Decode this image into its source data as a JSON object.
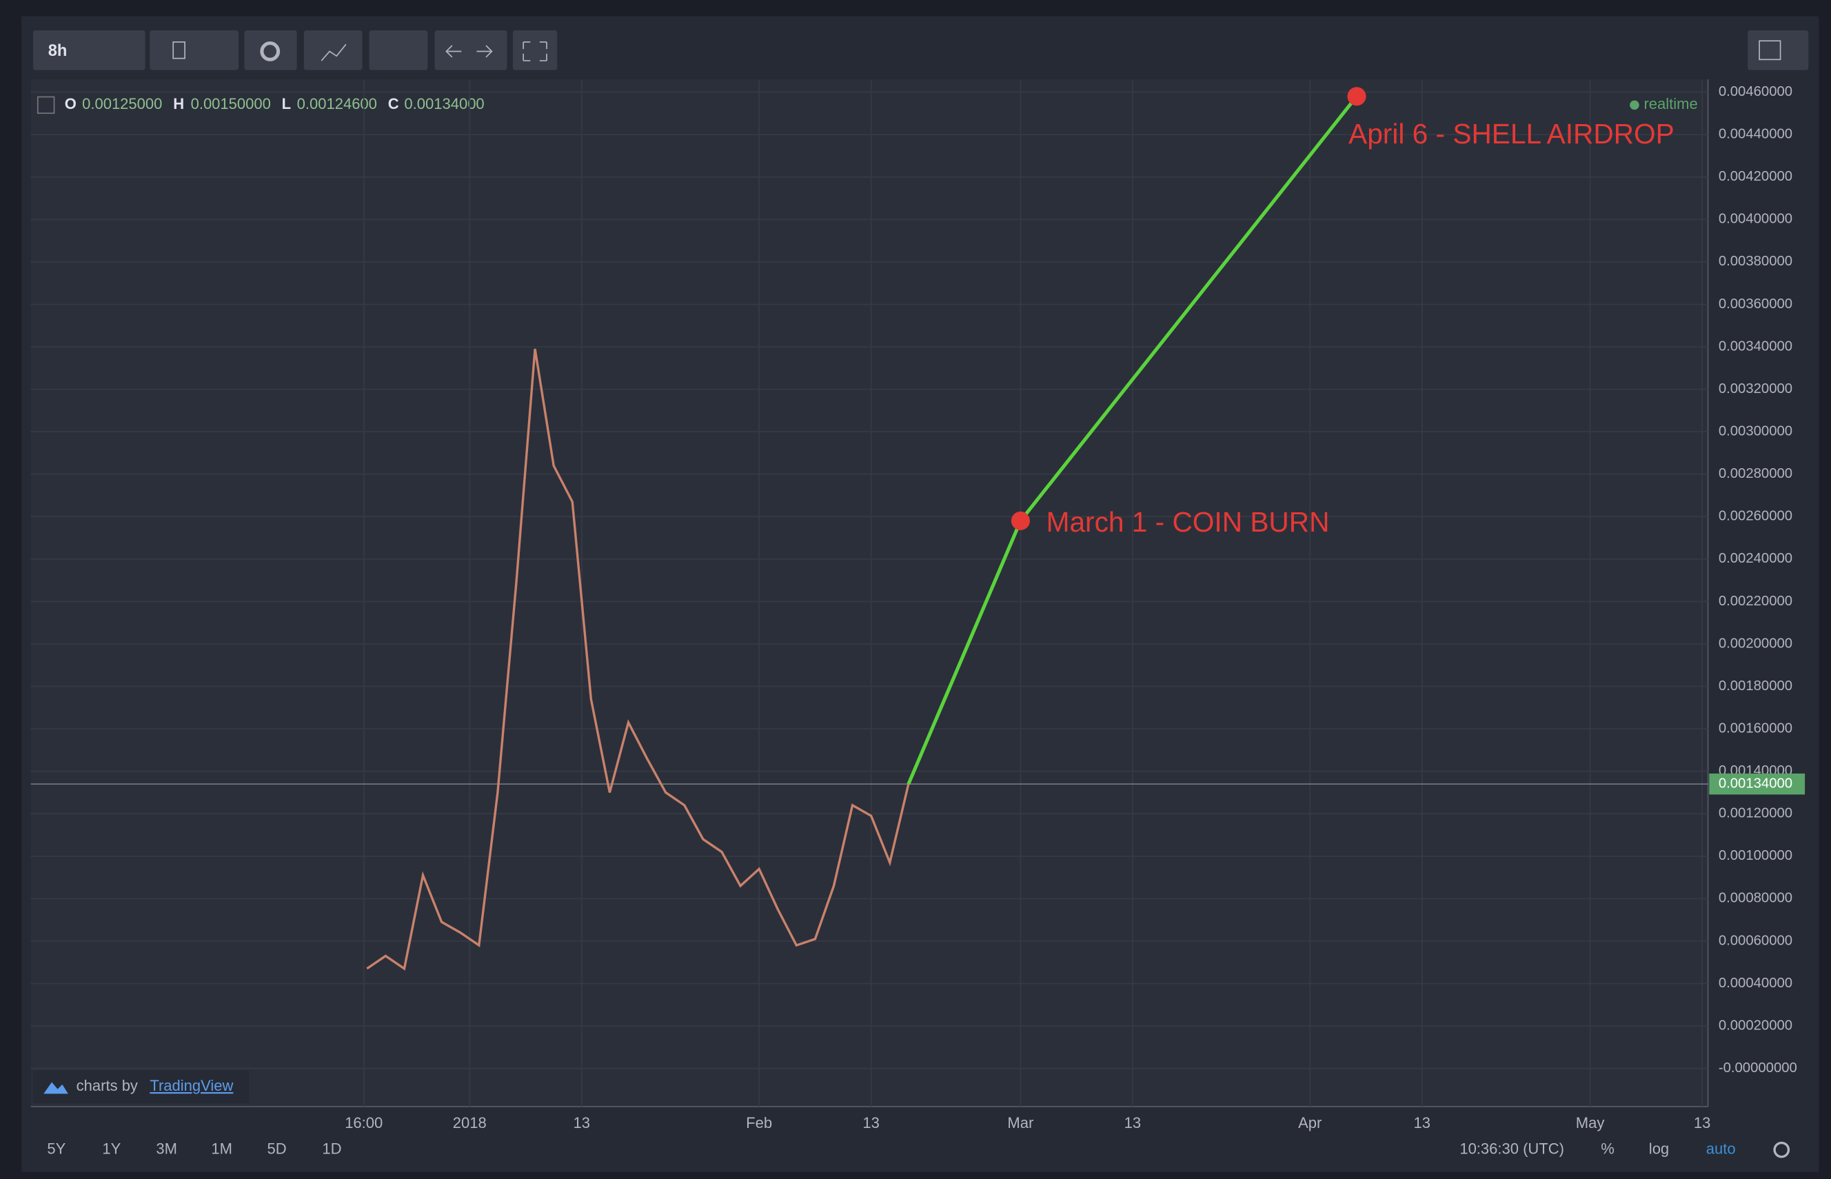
{
  "toolbar": {
    "interval": "8h"
  },
  "ohlc": [
    {
      "key": "O",
      "value": "0.00125000"
    },
    {
      "key": "H",
      "value": "0.00150000"
    },
    {
      "key": "L",
      "value": "0.00124600"
    },
    {
      "key": "C",
      "value": "0.00134000"
    }
  ],
  "status": "realtime",
  "branding": {
    "prefix": "charts by",
    "name": "TradingView"
  },
  "ranges": [
    "5Y",
    "1Y",
    "3M",
    "1M",
    "5D",
    "1D"
  ],
  "footer": {
    "time": "10:36:30 (UTC)",
    "percent": "%",
    "log": "log",
    "auto": "auto"
  },
  "chart_data": {
    "type": "line",
    "x": [
      "2017-12-21",
      "2017-12-23",
      "2017-12-25",
      "2017-12-27",
      "2017-12-29",
      "2017-12-31",
      "2018-01-02",
      "2018-01-04",
      "2018-01-06",
      "2018-01-08",
      "2018-01-10",
      "2018-01-12",
      "2018-01-14",
      "2018-01-16",
      "2018-01-18",
      "2018-01-20",
      "2018-01-22",
      "2018-01-24",
      "2018-01-26",
      "2018-01-28",
      "2018-01-30",
      "2018-02-01",
      "2018-02-03",
      "2018-02-05",
      "2018-02-07",
      "2018-02-09",
      "2018-02-11",
      "2018-02-13",
      "2018-02-15",
      "2018-02-17"
    ],
    "values": [
      0.00047,
      0.00053,
      0.00047,
      0.00091,
      0.00069,
      0.00064,
      0.00058,
      0.0013,
      0.00229,
      0.00339,
      0.00284,
      0.00267,
      0.00174,
      0.0013,
      0.00163,
      0.00146,
      0.0013,
      0.00124,
      0.00108,
      0.00102,
      0.00086,
      0.00094,
      0.00075,
      0.00058,
      0.00061,
      0.00086,
      0.00124,
      0.00119,
      0.00097,
      0.00134
    ],
    "color": "#c9826b",
    "projection": {
      "x": [
        "2018-02-17",
        "2018-03-01",
        "2018-04-06"
      ],
      "values": [
        0.00134,
        0.00258,
        0.00458
      ],
      "color": "#5ad33c",
      "point_color": "#e53935",
      "labels": [
        null,
        "March 1 - COIN BURN",
        "April 6 - SHELL AIRDROP"
      ]
    },
    "last_price": {
      "value": 0.00134,
      "label": "0.00134000"
    },
    "xlim": [
      "2017-11-15",
      "2018-05-14"
    ],
    "xticks": [
      {
        "value": "2017-12-20T16:00",
        "label": "16:00"
      },
      {
        "value": "2018-01-01",
        "label": "2018"
      },
      {
        "value": "2018-01-13",
        "label": "13"
      },
      {
        "value": "2018-02-01",
        "label": "Feb"
      },
      {
        "value": "2018-02-13",
        "label": "13"
      },
      {
        "value": "2018-03-01",
        "label": "Mar"
      },
      {
        "value": "2018-03-13",
        "label": "13"
      },
      {
        "value": "2018-04-01",
        "label": "Apr"
      },
      {
        "value": "2018-04-13",
        "label": "13"
      },
      {
        "value": "2018-05-01",
        "label": "May"
      },
      {
        "value": "2018-05-13",
        "label": "13"
      }
    ],
    "ylim": [
      -0.00018,
      0.00466
    ],
    "yticks": [
      {
        "value": 0.0046,
        "label": "0.00460000"
      },
      {
        "value": 0.0044,
        "label": "0.00440000"
      },
      {
        "value": 0.0042,
        "label": "0.00420000"
      },
      {
        "value": 0.004,
        "label": "0.00400000"
      },
      {
        "value": 0.0038,
        "label": "0.00380000"
      },
      {
        "value": 0.0036,
        "label": "0.00360000"
      },
      {
        "value": 0.0034,
        "label": "0.00340000"
      },
      {
        "value": 0.0032,
        "label": "0.00320000"
      },
      {
        "value": 0.003,
        "label": "0.00300000"
      },
      {
        "value": 0.0028,
        "label": "0.00280000"
      },
      {
        "value": 0.0026,
        "label": "0.00260000"
      },
      {
        "value": 0.0024,
        "label": "0.00240000"
      },
      {
        "value": 0.0022,
        "label": "0.00220000"
      },
      {
        "value": 0.002,
        "label": "0.00200000"
      },
      {
        "value": 0.0018,
        "label": "0.00180000"
      },
      {
        "value": 0.0016,
        "label": "0.00160000"
      },
      {
        "value": 0.0014,
        "label": "0.00140000"
      },
      {
        "value": 0.0012,
        "label": "0.00120000"
      },
      {
        "value": 0.001,
        "label": "0.00100000"
      },
      {
        "value": 0.0008,
        "label": "0.00080000"
      },
      {
        "value": 0.0006,
        "label": "0.00060000"
      },
      {
        "value": 0.0004,
        "label": "0.00040000"
      },
      {
        "value": 0.0002,
        "label": "0.00020000"
      },
      {
        "value": 0,
        "label": "-0.00000000"
      }
    ],
    "grid": true
  }
}
